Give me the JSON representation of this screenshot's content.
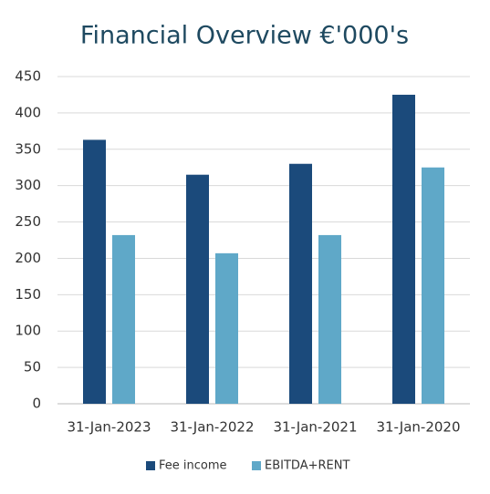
{
  "chart_data": {
    "type": "bar",
    "title": "Financial Overview €'000's",
    "categories": [
      "31-Jan-2023",
      "31-Jan-2022",
      "31-Jan-2021",
      "31-Jan-2020"
    ],
    "series": [
      {
        "name": "Fee income",
        "color": "#1b4a7b",
        "values": [
          363,
          315,
          330,
          425
        ]
      },
      {
        "name": "EBITDA+RENT",
        "color": "#5fa8c8",
        "values": [
          232,
          207,
          232,
          325
        ]
      }
    ],
    "ylim": [
      0,
      450
    ],
    "yticks": [
      0,
      50,
      100,
      150,
      200,
      250,
      300,
      350,
      400,
      450
    ],
    "grid": true,
    "legend": "bottom"
  }
}
